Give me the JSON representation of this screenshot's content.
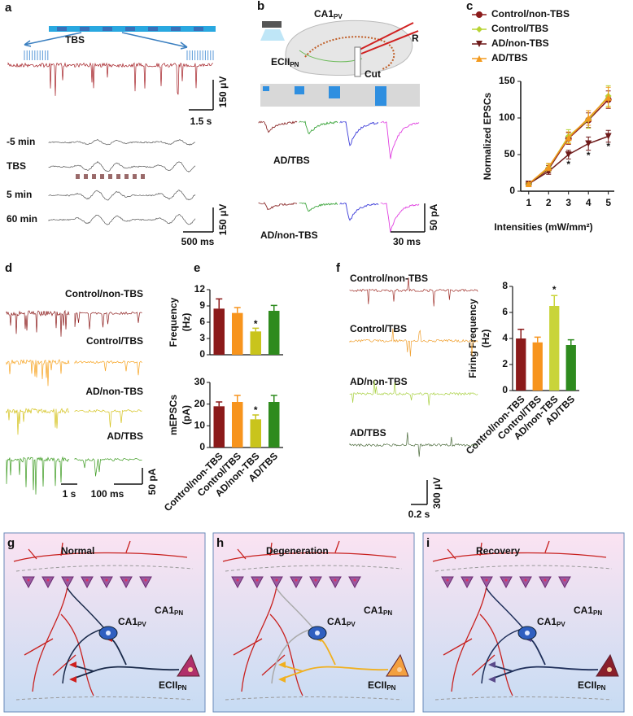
{
  "panels": {
    "a": {
      "label": "a",
      "tbs": "TBS",
      "scale_v1": "150 μV",
      "scale_t1": "1.5 s",
      "rows": [
        "-5 min",
        "TBS",
        "5 min",
        "60 min"
      ],
      "scale_v2": "150 μV",
      "scale_t2": "500 ms"
    },
    "b": {
      "label": "b",
      "ca1": {
        "main": "CA1",
        "sub": "PV"
      },
      "ec": {
        "main": "ECII",
        "sub": "PN"
      },
      "r": "R",
      "cut": "Cut",
      "rows": [
        "AD/TBS",
        "AD/non-TBS"
      ],
      "scale_i": "50 pA",
      "scale_t": "30 ms"
    },
    "c": {
      "label": "c"
    },
    "d": {
      "label": "d",
      "rows": [
        "Control/non-TBS",
        "Control/TBS",
        "AD/non-TBS",
        "AD/TBS"
      ],
      "scale_t1": "1 s",
      "scale_t2": "100 ms",
      "scale_i": "50 pA"
    },
    "e": {
      "label": "e"
    },
    "f": {
      "label": "f",
      "rows": [
        "Control/non-TBS",
        "Control/TBS",
        "AD/non-TBS",
        "AD/TBS"
      ],
      "scale_v": "300 μV",
      "scale_t": "0.2 s"
    },
    "g": {
      "label": "g",
      "title": "Normal",
      "ca1pn": {
        "main": "CA1",
        "sub": "PN"
      },
      "ca1pv": {
        "main": "CA1",
        "sub": "PV"
      },
      "ecpn": {
        "main": "ECII",
        "sub": "PN"
      }
    },
    "h": {
      "label": "h",
      "title": "Degeneration",
      "ca1pn": {
        "main": "CA1",
        "sub": "PN"
      },
      "ca1pv": {
        "main": "CA1",
        "sub": "PV"
      },
      "ecpn": {
        "main": "ECII",
        "sub": "PN"
      }
    },
    "i": {
      "label": "i",
      "title": "Recovery",
      "ca1pn": {
        "main": "CA1",
        "sub": "PN"
      },
      "ca1pv": {
        "main": "CA1",
        "sub": "PV"
      },
      "ecpn": {
        "main": "ECII",
        "sub": "PN"
      }
    }
  },
  "chart_data": [
    {
      "type": "line",
      "ylabel": "Normalized EPSCs",
      "xlabel": "Intensities (mW/mm²)",
      "x": [
        1,
        2,
        3,
        4,
        5
      ],
      "xlim": [
        0.6,
        5.3
      ],
      "xticks": [
        1,
        2,
        3,
        4,
        5
      ],
      "ylim": [
        0,
        150
      ],
      "yticks": [
        0,
        50,
        100,
        150
      ],
      "series": [
        {
          "name": "Control/non-TBS",
          "color": "#8b1a1a",
          "marker": "circle",
          "values": [
            10,
            30,
            72,
            97,
            125
          ],
          "errors": [
            2,
            5,
            8,
            10,
            12
          ]
        },
        {
          "name": "Control/TBS",
          "color": "#b8d434",
          "marker": "diamond",
          "values": [
            10,
            32,
            75,
            98,
            130
          ],
          "errors": [
            2,
            5,
            9,
            12,
            14
          ]
        },
        {
          "name": "AD/non-TBS",
          "color": "#6e1a1a",
          "marker": "triangle-down",
          "values": [
            10,
            27,
            50,
            65,
            75
          ],
          "errors": [
            2,
            4,
            6,
            9,
            8
          ]
        },
        {
          "name": "AD/TBS",
          "color": "#f39a1f",
          "marker": "triangle-up",
          "values": [
            10,
            33,
            73,
            100,
            128
          ],
          "errors": [
            2,
            5,
            8,
            10,
            14
          ]
        }
      ],
      "annotations": [
        {
          "text": "*",
          "x": 3,
          "y": 36
        },
        {
          "text": "*",
          "x": 4,
          "y": 48
        },
        {
          "text": "*",
          "x": 5,
          "y": 60
        }
      ]
    },
    {
      "type": "bar",
      "ylabel": [
        "Frequency",
        "(Hz)"
      ],
      "values": [
        8.5,
        7.7,
        4.3,
        8.1
      ],
      "errors": [
        1.8,
        1.0,
        0.6,
        1.0
      ],
      "colors": [
        "#8b1a1a",
        "#f7941d",
        "#c9c41c",
        "#2e8b1e"
      ],
      "ylim": [
        0,
        12
      ],
      "yticks": [
        0,
        3,
        6,
        9,
        12
      ],
      "annotations": [
        {
          "text": "*",
          "x": 2,
          "y": 5.6
        }
      ]
    },
    {
      "type": "bar",
      "ylabel": [
        "mEPSCs",
        "(pA)"
      ],
      "categories": [
        "Control/non-TBS",
        "Control/TBS",
        "AD/non-TBS",
        "AD/TBS"
      ],
      "values": [
        19,
        21,
        13,
        21
      ],
      "errors": [
        2,
        3,
        2,
        3
      ],
      "colors": [
        "#8b1a1a",
        "#f7941d",
        "#c9c41c",
        "#2e8b1e"
      ],
      "ylim": [
        0,
        30
      ],
      "yticks": [
        0,
        10,
        20,
        30
      ],
      "annotations": [
        {
          "text": "*",
          "x": 2,
          "y": 17
        }
      ]
    },
    {
      "type": "bar",
      "ylabel": [
        "Firing Frequency",
        "(Hz)"
      ],
      "categories": [
        "Control/non-TBS",
        "Control/TBS",
        "AD/non-TBS",
        "AD/TBS"
      ],
      "values": [
        4.0,
        3.7,
        6.5,
        3.5
      ],
      "errors": [
        0.7,
        0.4,
        0.8,
        0.4
      ],
      "colors": [
        "#8b1a1a",
        "#f7941d",
        "#c9d43a",
        "#2e8b1e"
      ],
      "ylim": [
        0,
        8
      ],
      "yticks": [
        0,
        2,
        4,
        6,
        8
      ],
      "annotations": [
        {
          "text": "*",
          "x": 2,
          "y": 7.7
        }
      ]
    }
  ]
}
